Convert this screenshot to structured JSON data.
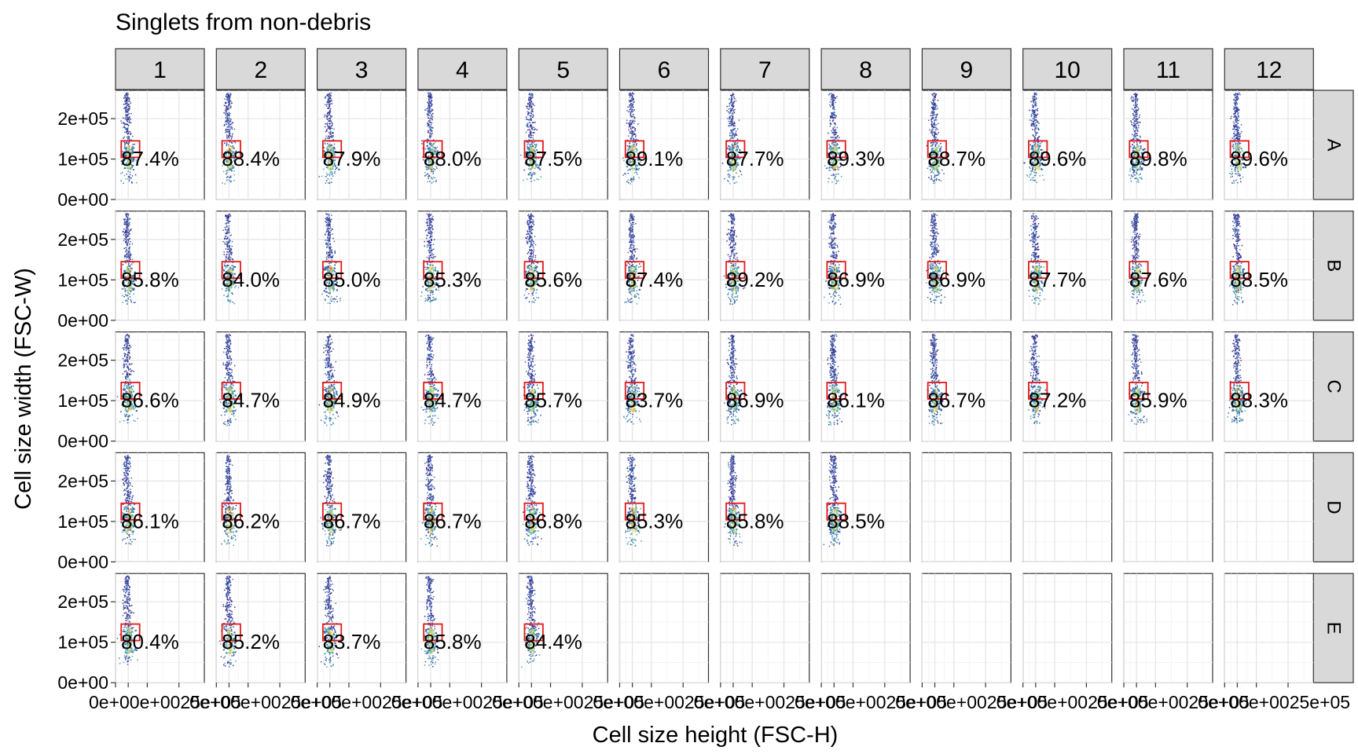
{
  "chart_data": {
    "type": "scatter",
    "title": "Singlets from non-debris",
    "xlabel": "Cell size height (FSC-H)",
    "ylabel": "Cell size width (FSC-W)",
    "columns": [
      "1",
      "2",
      "3",
      "4",
      "5",
      "6",
      "7",
      "8",
      "9",
      "10",
      "11",
      "12"
    ],
    "rows": [
      "A",
      "B",
      "C",
      "D",
      "E"
    ],
    "y_ticks": [
      "0e+00",
      "1e+05",
      "2e+05"
    ],
    "y_tick_values": [
      0,
      100000,
      200000
    ],
    "ylim": [
      0,
      270000
    ],
    "x_tick_values": [
      0,
      100000,
      250000,
      500000
    ],
    "x_tick_labels": [
      "0e+00",
      "1e+05",
      "2.5e+05",
      "5e+05"
    ],
    "x_tick_label_text": "0e+00e+0025e+05",
    "x_tick_label_text_last": "0e+00e+0025e+05",
    "xlim": [
      0,
      700000
    ],
    "gate_range": {
      "x": [
        45000,
        190000
      ],
      "y": [
        60000,
        145000
      ]
    },
    "percentages": [
      [
        "87.4%",
        "88.4%",
        "87.9%",
        "88.0%",
        "87.5%",
        "89.1%",
        "87.7%",
        "89.3%",
        "88.7%",
        "89.6%",
        "89.8%",
        "89.6%"
      ],
      [
        "85.8%",
        "84.0%",
        "85.0%",
        "85.3%",
        "85.6%",
        "87.4%",
        "89.2%",
        "86.9%",
        "86.9%",
        "87.7%",
        "87.6%",
        "88.5%"
      ],
      [
        "86.6%",
        "84.7%",
        "84.9%",
        "84.7%",
        "85.7%",
        "83.7%",
        "86.9%",
        "86.1%",
        "86.7%",
        "87.2%",
        "85.9%",
        "88.3%"
      ],
      [
        "86.1%",
        "86.2%",
        "86.7%",
        "86.7%",
        "86.8%",
        "85.3%",
        "85.8%",
        "88.5%",
        null,
        null,
        null,
        null
      ],
      [
        "80.4%",
        "85.2%",
        "83.7%",
        "85.8%",
        "84.4%",
        null,
        null,
        null,
        null,
        null,
        null,
        null
      ]
    ],
    "density_palette": [
      "#3b2f8f",
      "#3f67b0",
      "#4ea3b0",
      "#8fd19e",
      "#f2e56b",
      "#f7a94a",
      "#e03a2f"
    ],
    "gate_color": "#e31a1c",
    "strip_color": "#d9d9d9",
    "grid": true
  }
}
